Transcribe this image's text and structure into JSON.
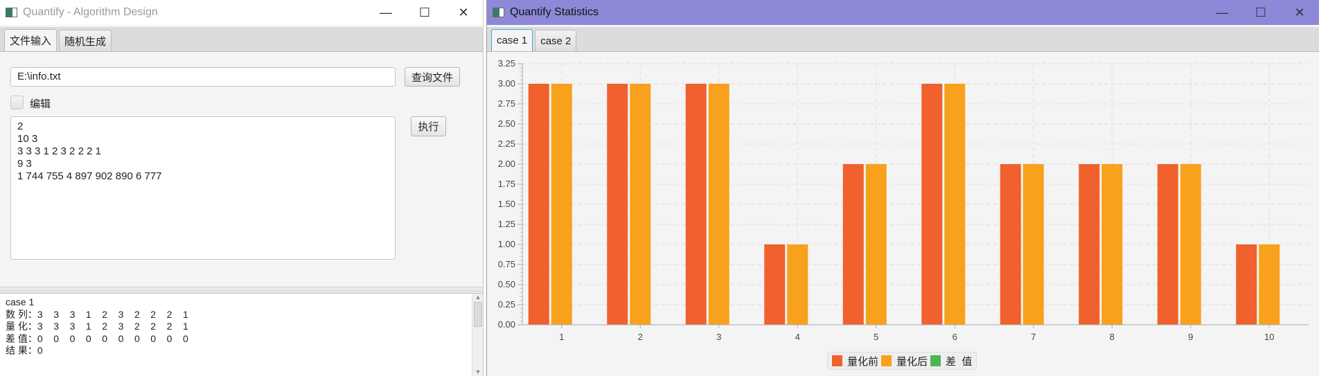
{
  "main_window": {
    "title": "Quantify - Algorithm Design",
    "tabs": [
      "文件输入",
      "随机生成"
    ],
    "file_path": "E:\\info.txt",
    "query_button": "查询文件",
    "edit_checkbox_label": "编辑",
    "edit_checked": false,
    "input_text": "2\n10 3\n3 3 3 1 2 3 2 2 2 1\n9 3\n1 744 755 4 897 902 890 6 777",
    "run_button": "执行",
    "output_text": "case 1\n数 列：3    3    3    1    2    3    2    2    2    1\n量 化：3    3    3    1    2    3    2    2    2    1\n差 值：0    0    0    0    0    0    0    0    0    0\n结 果：0"
  },
  "stats_window": {
    "title": "Quantify Statistics",
    "tabs": [
      "case 1",
      "case 2"
    ]
  },
  "window_controls": {
    "minimize": "—",
    "maximize": "☐",
    "close": "✕"
  },
  "colors": {
    "before": "#f0612d",
    "after": "#f8a11d",
    "diff": "#4db551"
  },
  "chart_data": {
    "type": "bar",
    "categories": [
      "1",
      "2",
      "3",
      "4",
      "5",
      "6",
      "7",
      "8",
      "9",
      "10"
    ],
    "series": [
      {
        "name": "量化前",
        "values": [
          3,
          3,
          3,
          1,
          2,
          3,
          2,
          2,
          2,
          1
        ]
      },
      {
        "name": "量化后",
        "values": [
          3,
          3,
          3,
          1,
          2,
          3,
          2,
          2,
          2,
          1
        ]
      },
      {
        "name": "差  值",
        "values": [
          0,
          0,
          0,
          0,
          0,
          0,
          0,
          0,
          0,
          0
        ]
      }
    ],
    "ylim": [
      0,
      3.25
    ],
    "yticks": [
      "0.00",
      "0.25",
      "0.50",
      "0.75",
      "1.00",
      "1.25",
      "1.50",
      "1.75",
      "2.00",
      "2.25",
      "2.50",
      "2.75",
      "3.00",
      "3.25"
    ],
    "grid": true,
    "legend": "bottom-center"
  }
}
